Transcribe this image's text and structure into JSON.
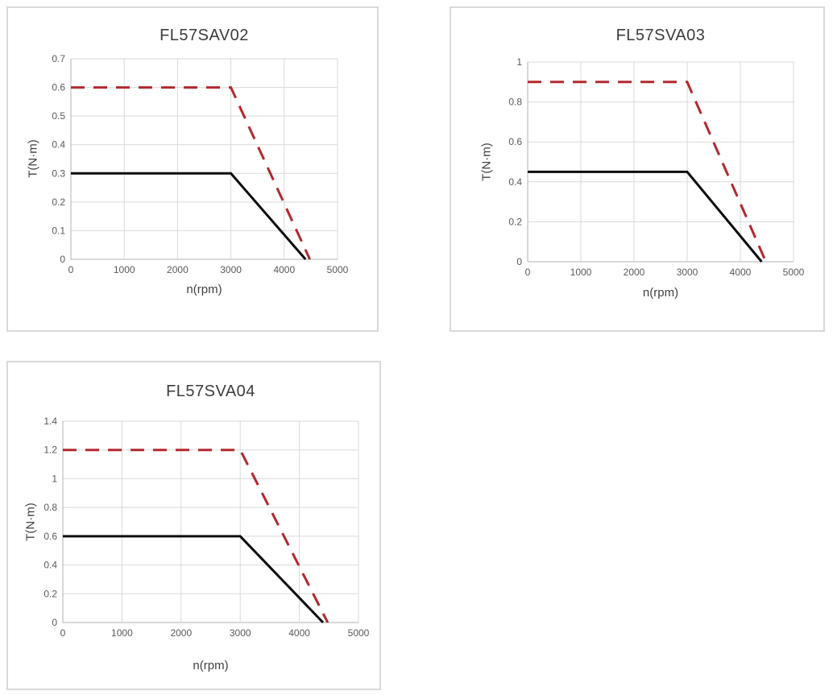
{
  "page": {
    "background": "#ffffff"
  },
  "colors": {
    "grid": "#d9d9d9",
    "axis": "#b0b0b0",
    "tick_text": "#595959",
    "title_text": "#3c3c3c",
    "panel_border": "#d9d9d9",
    "solid_line": "#0d0d0d",
    "dashed_line": "#b2282e"
  },
  "chart_data": [
    {
      "type": "line",
      "title": "FL57SAV02",
      "xlabel": "n(rpm)",
      "ylabel": "T(N·m)",
      "xlim": [
        0,
        5000
      ],
      "ylim": [
        0,
        0.7
      ],
      "x_ticks": [
        0,
        1000,
        2000,
        3000,
        4000,
        5000
      ],
      "y_ticks": [
        0,
        0.1,
        0.2,
        0.3,
        0.4,
        0.5,
        0.6,
        0.7
      ],
      "grid": true,
      "legend": "none",
      "series": [
        {
          "name": "solid",
          "style": "solid",
          "color": "#0d0d0d",
          "points": [
            [
              0,
              0.3
            ],
            [
              3000,
              0.3
            ],
            [
              4400,
              0
            ]
          ]
        },
        {
          "name": "dashed",
          "style": "dashed",
          "color": "#b2282e",
          "points": [
            [
              0,
              0.6
            ],
            [
              3000,
              0.6
            ],
            [
              4480,
              0
            ]
          ]
        }
      ]
    },
    {
      "type": "line",
      "title": "FL57SVA03",
      "xlabel": "n(rpm)",
      "ylabel": "T(N·m)",
      "xlim": [
        0,
        5000
      ],
      "ylim": [
        0,
        1
      ],
      "x_ticks": [
        0,
        1000,
        2000,
        3000,
        4000,
        5000
      ],
      "y_ticks": [
        0,
        0.2,
        0.4,
        0.6,
        0.8,
        1
      ],
      "grid": true,
      "legend": "none",
      "series": [
        {
          "name": "solid",
          "style": "solid",
          "color": "#0d0d0d",
          "points": [
            [
              0,
              0.45
            ],
            [
              3000,
              0.45
            ],
            [
              4400,
              0
            ]
          ]
        },
        {
          "name": "dashed",
          "style": "dashed",
          "color": "#b2282e",
          "points": [
            [
              0,
              0.9
            ],
            [
              3000,
              0.9
            ],
            [
              4480,
              0
            ]
          ]
        }
      ]
    },
    {
      "type": "line",
      "title": "FL57SVA04",
      "xlabel": "n(rpm)",
      "ylabel": "T(N·m)",
      "xlim": [
        0,
        5000
      ],
      "ylim": [
        0,
        1.4
      ],
      "x_ticks": [
        0,
        1000,
        2000,
        3000,
        4000,
        5000
      ],
      "y_ticks": [
        0,
        0.2,
        0.4,
        0.6,
        0.8,
        1,
        1.2,
        1.4
      ],
      "grid": true,
      "legend": "none",
      "series": [
        {
          "name": "solid",
          "style": "solid",
          "color": "#0d0d0d",
          "points": [
            [
              0,
              0.6
            ],
            [
              3000,
              0.6
            ],
            [
              4400,
              0
            ]
          ]
        },
        {
          "name": "dashed",
          "style": "dashed",
          "color": "#b2282e",
          "points": [
            [
              0,
              1.2
            ],
            [
              3000,
              1.2
            ],
            [
              4480,
              0
            ]
          ]
        }
      ]
    }
  ]
}
